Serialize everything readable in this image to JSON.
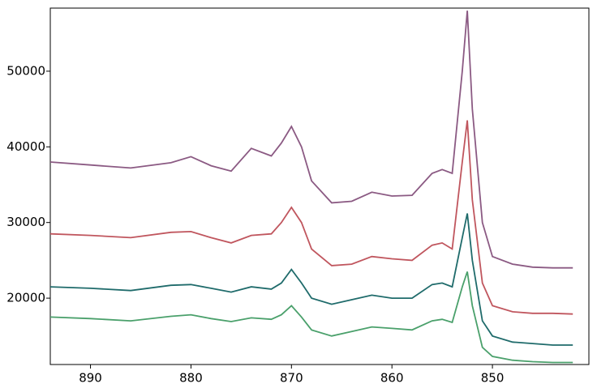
{
  "chart_data": {
    "type": "line",
    "x": [
      894,
      890,
      886,
      882,
      880,
      878,
      876,
      874,
      872,
      871,
      870,
      869,
      868,
      866,
      864,
      862,
      860,
      858,
      856,
      855,
      854,
      853,
      852.5,
      852,
      851,
      850,
      848,
      846,
      844,
      842
    ],
    "series": [
      {
        "color": "#8b5a83",
        "values": [
          38000,
          37600,
          37200,
          37900,
          38700,
          37500,
          36800,
          39800,
          38800,
          40500,
          42700,
          40000,
          35500,
          32600,
          32800,
          34000,
          33500,
          33600,
          36500,
          37000,
          36500,
          50000,
          58000,
          45000,
          30000,
          25500,
          24500,
          24100,
          24000,
          24000
        ]
      },
      {
        "color": "#c0565e",
        "values": [
          28500,
          28300,
          28000,
          28700,
          28800,
          28000,
          27300,
          28300,
          28500,
          30000,
          32000,
          30000,
          26500,
          24300,
          24500,
          25500,
          25200,
          25000,
          27000,
          27300,
          26500,
          38000,
          43500,
          33000,
          22000,
          19000,
          18200,
          18000,
          18000,
          17900
        ]
      },
      {
        "color": "#1f6b6b",
        "values": [
          21500,
          21300,
          21000,
          21700,
          21800,
          21300,
          20800,
          21500,
          21200,
          22000,
          23800,
          22000,
          20000,
          19200,
          19800,
          20400,
          20000,
          20000,
          21800,
          22000,
          21500,
          28000,
          31200,
          25000,
          17000,
          15000,
          14200,
          14000,
          13800,
          13800
        ]
      },
      {
        "color": "#4aa06b",
        "values": [
          17500,
          17300,
          17000,
          17600,
          17800,
          17300,
          16900,
          17400,
          17200,
          17800,
          19000,
          17500,
          15800,
          15000,
          15600,
          16200,
          16000,
          15800,
          17000,
          17200,
          16800,
          21500,
          23500,
          19000,
          13500,
          12300,
          11800,
          11600,
          11500,
          11500
        ]
      }
    ],
    "xlim": [
      894,
      840.4
    ],
    "xticks": [
      890,
      880,
      870,
      860,
      850
    ],
    "ylim": [
      11230,
      58340
    ],
    "yticks": [
      20000,
      30000,
      40000,
      50000
    ]
  }
}
